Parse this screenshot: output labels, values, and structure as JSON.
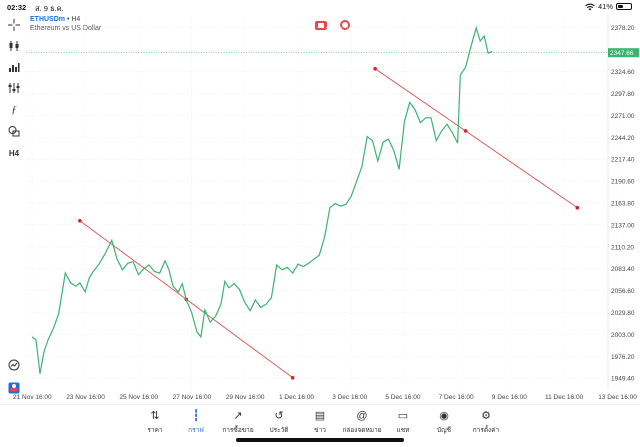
{
  "status": {
    "time": "02:32",
    "date": "ส. 9 ธ.ค.",
    "battery": "41%",
    "battery_level": 0.41
  },
  "symbol": {
    "name": "ETHUSDm",
    "timeframe": "H4",
    "description": "Ethereum vs US Dollar"
  },
  "toolbar": [
    "crosshair-icon",
    "candlestick-icon",
    "bar-chart-icon",
    "indicators-icon",
    "function-icon",
    "shapes-icon",
    "timeframe-label"
  ],
  "toolbar_timeframe": "H4",
  "chart_data": {
    "type": "line",
    "y_ticks": [
      "2378.20",
      "2324.60",
      "2297.80",
      "2271.00",
      "2244.20",
      "2217.40",
      "2190.60",
      "2163.80",
      "2137.00",
      "2110.20",
      "2083.40",
      "2056.60",
      "2029.80",
      "2003.00",
      "1976.20",
      "1949.40"
    ],
    "x_ticks": [
      "21 Nov 16:00",
      "23 Nov 16:00",
      "25 Nov 16:00",
      "27 Nov 16:00",
      "29 Nov 16:00",
      "1 Dec 16:00",
      "3 Dec 16:00",
      "5 Dec 16:00",
      "7 Dec 16:00",
      "9 Dec 16:00",
      "11 Dec 16:00",
      "13 Dec 16:00"
    ],
    "current_price": "2347.66",
    "current_value": 2347.66,
    "ylim": [
      1935,
      2395
    ],
    "x_unit": "days since 21 Nov 16:00",
    "series": [
      {
        "x": 0,
        "y": 2000
      },
      {
        "x": 0.15,
        "y": 1996
      },
      {
        "x": 0.3,
        "y": 1955
      },
      {
        "x": 0.45,
        "y": 1982
      },
      {
        "x": 0.6,
        "y": 1996
      },
      {
        "x": 0.8,
        "y": 2010
      },
      {
        "x": 1,
        "y": 2028
      },
      {
        "x": 1.25,
        "y": 2078
      },
      {
        "x": 1.45,
        "y": 2066
      },
      {
        "x": 1.65,
        "y": 2062
      },
      {
        "x": 1.8,
        "y": 2066
      },
      {
        "x": 2,
        "y": 2055
      },
      {
        "x": 2.15,
        "y": 2072
      },
      {
        "x": 2.3,
        "y": 2080
      },
      {
        "x": 2.5,
        "y": 2088
      },
      {
        "x": 2.75,
        "y": 2102
      },
      {
        "x": 3,
        "y": 2118
      },
      {
        "x": 3.2,
        "y": 2095
      },
      {
        "x": 3.4,
        "y": 2082
      },
      {
        "x": 3.6,
        "y": 2090
      },
      {
        "x": 3.8,
        "y": 2092
      },
      {
        "x": 4,
        "y": 2076
      },
      {
        "x": 4.2,
        "y": 2083
      },
      {
        "x": 4.4,
        "y": 2088
      },
      {
        "x": 4.6,
        "y": 2080
      },
      {
        "x": 4.8,
        "y": 2078
      },
      {
        "x": 5,
        "y": 2093
      },
      {
        "x": 5.15,
        "y": 2082
      },
      {
        "x": 5.3,
        "y": 2062
      },
      {
        "x": 5.5,
        "y": 2055
      },
      {
        "x": 5.65,
        "y": 2065
      },
      {
        "x": 5.8,
        "y": 2045
      },
      {
        "x": 6,
        "y": 2030
      },
      {
        "x": 6.2,
        "y": 2006
      },
      {
        "x": 6.35,
        "y": 2000
      },
      {
        "x": 6.5,
        "y": 2033
      },
      {
        "x": 6.7,
        "y": 2018
      },
      {
        "x": 6.9,
        "y": 2025
      },
      {
        "x": 7.1,
        "y": 2040
      },
      {
        "x": 7.25,
        "y": 2068
      },
      {
        "x": 7.4,
        "y": 2060
      },
      {
        "x": 7.6,
        "y": 2065
      },
      {
        "x": 7.8,
        "y": 2058
      },
      {
        "x": 8,
        "y": 2042
      },
      {
        "x": 8.2,
        "y": 2032
      },
      {
        "x": 8.4,
        "y": 2045
      },
      {
        "x": 8.6,
        "y": 2036
      },
      {
        "x": 8.8,
        "y": 2040
      },
      {
        "x": 9,
        "y": 2048
      },
      {
        "x": 9.2,
        "y": 2088
      },
      {
        "x": 9.4,
        "y": 2082
      },
      {
        "x": 9.6,
        "y": 2085
      },
      {
        "x": 9.8,
        "y": 2078
      },
      {
        "x": 10,
        "y": 2089
      },
      {
        "x": 10.2,
        "y": 2086
      },
      {
        "x": 10.4,
        "y": 2090
      },
      {
        "x": 10.6,
        "y": 2095
      },
      {
        "x": 10.8,
        "y": 2100
      },
      {
        "x": 11,
        "y": 2122
      },
      {
        "x": 11.2,
        "y": 2158
      },
      {
        "x": 11.4,
        "y": 2163
      },
      {
        "x": 11.6,
        "y": 2160
      },
      {
        "x": 11.8,
        "y": 2162
      },
      {
        "x": 12,
        "y": 2172
      },
      {
        "x": 12.2,
        "y": 2190
      },
      {
        "x": 12.4,
        "y": 2208
      },
      {
        "x": 12.6,
        "y": 2245
      },
      {
        "x": 12.8,
        "y": 2240
      },
      {
        "x": 13,
        "y": 2215
      },
      {
        "x": 13.2,
        "y": 2238
      },
      {
        "x": 13.4,
        "y": 2242
      },
      {
        "x": 13.6,
        "y": 2228
      },
      {
        "x": 13.8,
        "y": 2205
      },
      {
        "x": 14,
        "y": 2263
      },
      {
        "x": 14.2,
        "y": 2287
      },
      {
        "x": 14.4,
        "y": 2278
      },
      {
        "x": 14.6,
        "y": 2262
      },
      {
        "x": 14.8,
        "y": 2268
      },
      {
        "x": 15,
        "y": 2268
      },
      {
        "x": 15.2,
        "y": 2240
      },
      {
        "x": 15.4,
        "y": 2252
      },
      {
        "x": 15.6,
        "y": 2260
      },
      {
        "x": 15.8,
        "y": 2250
      },
      {
        "x": 16,
        "y": 2237
      },
      {
        "x": 16.1,
        "y": 2320
      },
      {
        "x": 16.3,
        "y": 2330
      },
      {
        "x": 16.5,
        "y": 2355
      },
      {
        "x": 16.7,
        "y": 2378
      },
      {
        "x": 16.85,
        "y": 2362
      },
      {
        "x": 17,
        "y": 2368
      },
      {
        "x": 17.15,
        "y": 2347
      },
      {
        "x": 17.3,
        "y": 2349
      }
    ],
    "trend_lines": [
      {
        "x1": 1.8,
        "y1": 2142,
        "x2": 9.8,
        "y2": 1950,
        "mid_x": 5.8,
        "mid_y": 2046
      },
      {
        "x1": 12.9,
        "y1": 2328,
        "x2": 20.5,
        "y2": 2158,
        "mid_x": 16.3,
        "mid_y": 2252
      }
    ]
  },
  "bottom_nav": [
    {
      "icon": "price-arrows-icon",
      "label": "ราคา",
      "active": false
    },
    {
      "icon": "chart-candles-icon",
      "label": "กราฟ",
      "active": true
    },
    {
      "icon": "trade-chart-icon",
      "label": "การซื้อขาย",
      "active": false
    },
    {
      "icon": "history-icon",
      "label": "ประวัติ",
      "active": false
    },
    {
      "icon": "news-icon",
      "label": "ข่าว",
      "active": false
    },
    {
      "icon": "mailbox-icon",
      "label": "กล่องจดหมาย",
      "active": false
    },
    {
      "icon": "chat-icon",
      "label": "แชท",
      "active": false
    },
    {
      "icon": "account-icon",
      "label": "บัญชี",
      "active": false
    },
    {
      "icon": "settings-icon",
      "label": "การตั้งค่า",
      "active": false
    }
  ]
}
